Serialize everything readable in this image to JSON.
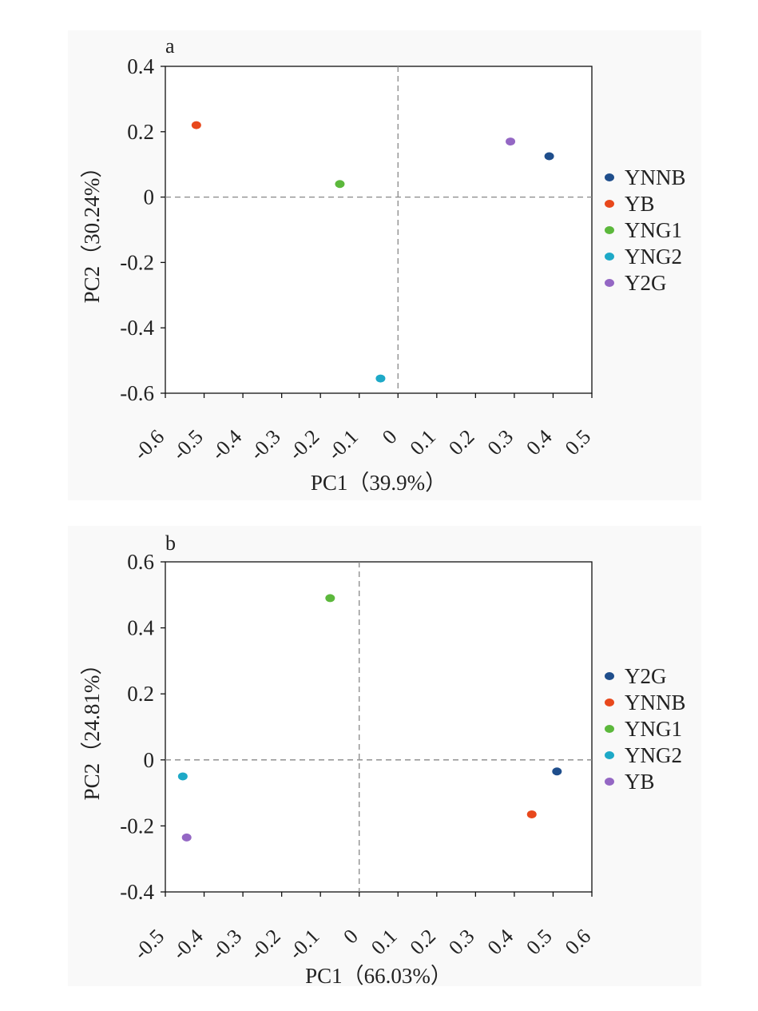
{
  "chart_data": [
    {
      "type": "scatter",
      "panel_label": "a",
      "title": "",
      "xlabel": "PC1（39.9%）",
      "ylabel": "PC2（30.24%）",
      "xlim": [
        -0.6,
        0.5
      ],
      "ylim": [
        -0.6,
        0.4
      ],
      "xticks": [
        "-0.6",
        "-0.5",
        "-0.4",
        "-0.3",
        "-0.2",
        "-0.1",
        "0",
        "0.1",
        "0.2",
        "0.3",
        "0.4",
        "0.5"
      ],
      "xtick_values": [
        -0.6,
        -0.5,
        -0.4,
        -0.3,
        -0.2,
        -0.1,
        0,
        0.1,
        0.2,
        0.3,
        0.4,
        0.5
      ],
      "yticks": [
        "0.4",
        "0.2",
        "0",
        "-0.2",
        "-0.4",
        "-0.6"
      ],
      "ytick_values": [
        0.4,
        0.2,
        0,
        -0.2,
        -0.4,
        -0.6
      ],
      "grid": false,
      "legend_position": "right",
      "series": [
        {
          "name": "YNNB",
          "color": "#1f4e8c",
          "x": 0.39,
          "y": 0.125
        },
        {
          "name": "YB",
          "color": "#e8481c",
          "x": -0.52,
          "y": 0.22
        },
        {
          "name": "YNG1",
          "color": "#5cb83c",
          "x": -0.15,
          "y": 0.04
        },
        {
          "name": "YNG2",
          "color": "#1ea9c7",
          "x": -0.045,
          "y": -0.555
        },
        {
          "name": "Y2G",
          "color": "#9467c4",
          "x": 0.29,
          "y": 0.17
        }
      ]
    },
    {
      "type": "scatter",
      "panel_label": "b",
      "title": "",
      "xlabel": "PC1（66.03%）",
      "ylabel": "PC2（24.81%）",
      "xlim": [
        -0.5,
        0.6
      ],
      "ylim": [
        -0.4,
        0.6
      ],
      "xticks": [
        "-0.5",
        "-0.4",
        "-0.3",
        "-0.2",
        "-0.1",
        "0",
        "0.1",
        "0.2",
        "0.3",
        "0.4",
        "0.5",
        "0.6"
      ],
      "xtick_values": [
        -0.5,
        -0.4,
        -0.3,
        -0.2,
        -0.1,
        0,
        0.1,
        0.2,
        0.3,
        0.4,
        0.5,
        0.6
      ],
      "yticks": [
        "0.6",
        "0.4",
        "0.2",
        "0",
        "-0.2",
        "-0.4"
      ],
      "ytick_values": [
        0.6,
        0.4,
        0.2,
        0,
        -0.2,
        -0.4
      ],
      "grid": false,
      "legend_position": "right",
      "series": [
        {
          "name": "Y2G",
          "color": "#1f4e8c",
          "x": 0.51,
          "y": -0.035
        },
        {
          "name": "YNNB",
          "color": "#e8481c",
          "x": 0.445,
          "y": -0.165
        },
        {
          "name": "YNG1",
          "color": "#5cb83c",
          "x": -0.075,
          "y": 0.49
        },
        {
          "name": "YNG2",
          "color": "#1ea9c7",
          "x": -0.455,
          "y": -0.05
        },
        {
          "name": "YB",
          "color": "#9467c4",
          "x": -0.445,
          "y": -0.235
        }
      ]
    }
  ]
}
